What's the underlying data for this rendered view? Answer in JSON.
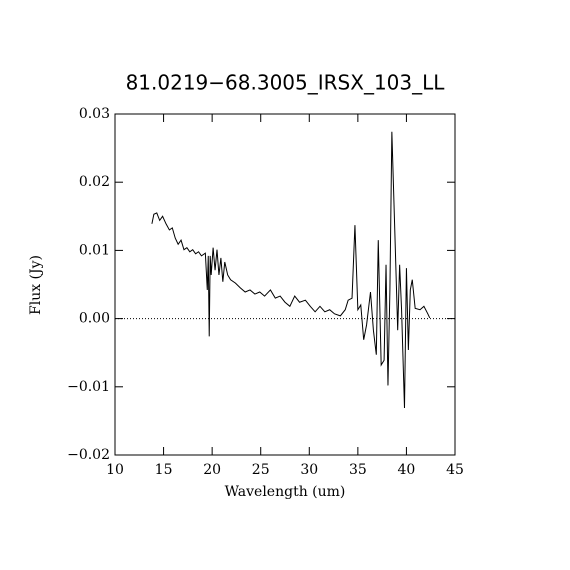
{
  "chart_data": {
    "type": "line",
    "title": "81.0219−68.3005_IRSX_103_LL",
    "x_label": "Wavelength (um)",
    "y_label": "Flux (Jy)",
    "xlim": [
      10,
      45
    ],
    "ylim": [
      -0.02,
      0.03
    ],
    "xticks": [
      10,
      15,
      20,
      25,
      30,
      35,
      40,
      45
    ],
    "yticks": [
      {
        "value": -0.02,
        "label": "−0.02"
      },
      {
        "value": -0.01,
        "label": "−0.01"
      },
      {
        "value": 0,
        "label": "0.00"
      },
      {
        "value": 0.01,
        "label": "0.01"
      },
      {
        "value": 0.02,
        "label": "0.02"
      },
      {
        "value": 0.03,
        "label": "0.03"
      }
    ],
    "zero_line": true,
    "color": "#000000",
    "x": [
      13.8,
      14.0,
      14.3,
      14.6,
      14.9,
      15.25,
      15.6,
      15.9,
      16.2,
      16.5,
      16.8,
      17.1,
      17.4,
      17.7,
      18.0,
      18.3,
      18.6,
      18.9,
      19.3,
      19.5,
      19.6,
      19.7,
      19.8,
      19.9,
      20.1,
      20.3,
      20.5,
      20.7,
      20.9,
      21.1,
      21.3,
      21.6,
      21.9,
      22.4,
      22.9,
      23.4,
      23.9,
      24.4,
      24.9,
      25.4,
      26.0,
      26.5,
      27.0,
      27.5,
      28.0,
      28.5,
      29.0,
      29.6,
      30.1,
      30.6,
      31.1,
      31.6,
      32.1,
      32.6,
      33.2,
      33.7,
      34.0,
      34.4,
      34.7,
      35.0,
      35.3,
      35.6,
      35.9,
      36.3,
      36.6,
      36.9,
      37.1,
      37.4,
      37.7,
      37.9,
      38.1,
      38.3,
      38.5,
      38.8,
      39.1,
      39.3,
      39.5,
      39.8,
      40.0,
      40.2,
      40.4,
      40.6,
      40.9,
      41.4,
      41.8,
      42.2,
      42.4
    ],
    "values": [
      0.0139,
      0.0153,
      0.0155,
      0.0144,
      0.015,
      0.0139,
      0.013,
      0.0133,
      0.0118,
      0.0109,
      0.0115,
      0.0101,
      0.0104,
      0.0098,
      0.0101,
      0.0095,
      0.0098,
      0.0092,
      0.0096,
      0.0042,
      0.0092,
      -0.0026,
      0.0092,
      0.0064,
      0.0104,
      0.0071,
      0.0101,
      0.0064,
      0.0089,
      0.0054,
      0.0083,
      0.0064,
      0.0057,
      0.0052,
      0.0045,
      0.0039,
      0.0042,
      0.0036,
      0.0039,
      0.0033,
      0.0042,
      0.003,
      0.0033,
      0.0024,
      0.0018,
      0.0033,
      0.0024,
      0.0027,
      0.0018,
      0.001,
      0.0018,
      0.001,
      0.0013,
      0.0007,
      0.0004,
      0.0013,
      0.0027,
      0.003,
      0.0137,
      0.0013,
      0.002,
      -0.0031,
      -0.0009,
      0.0039,
      -0.0017,
      -0.0053,
      0.0115,
      -0.0068,
      -0.0061,
      0.0079,
      -0.0098,
      0.0042,
      0.0274,
      0.013,
      -0.0017,
      0.0079,
      0.0013,
      -0.0131,
      0.0074,
      -0.0046,
      0.0042,
      0.0057,
      0.0015,
      0.0013,
      0.0018,
      0.0007,
      0.0001
    ]
  }
}
